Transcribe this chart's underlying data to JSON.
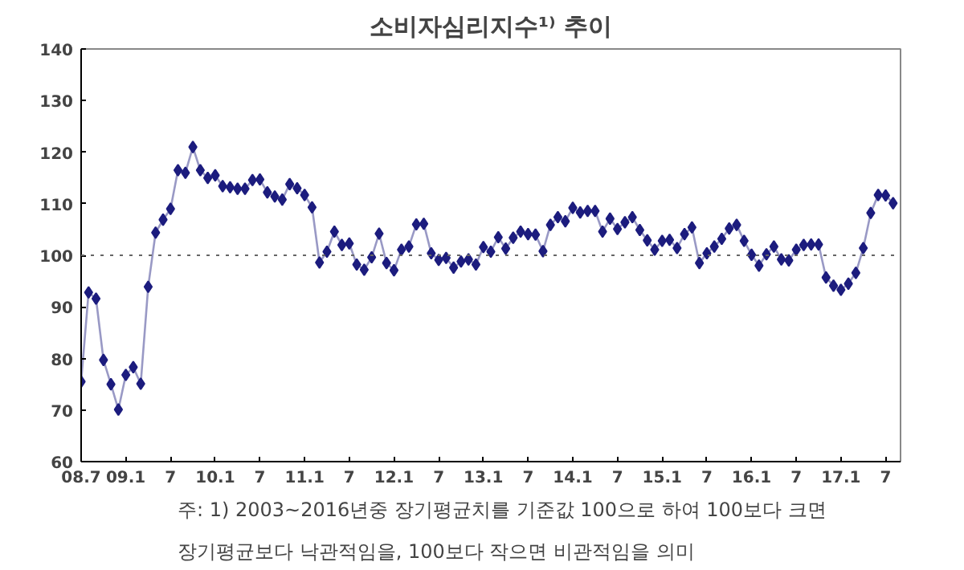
{
  "chart_data": {
    "type": "line",
    "title": "소비자심리지수¹⁾ 추이",
    "x": [
      "2008-07",
      "2008-08",
      "2008-09",
      "2008-10",
      "2008-11",
      "2008-12",
      "2009-01",
      "2009-02",
      "2009-03",
      "2009-04",
      "2009-05",
      "2009-06",
      "2009-07",
      "2009-08",
      "2009-09",
      "2009-10",
      "2009-11",
      "2009-12",
      "2010-01",
      "2010-02",
      "2010-03",
      "2010-04",
      "2010-05",
      "2010-06",
      "2010-07",
      "2010-08",
      "2010-09",
      "2010-10",
      "2010-11",
      "2010-12",
      "2011-01",
      "2011-02",
      "2011-03",
      "2011-04",
      "2011-05",
      "2011-06",
      "2011-07",
      "2011-08",
      "2011-09",
      "2011-10",
      "2011-11",
      "2011-12",
      "2012-01",
      "2012-02",
      "2012-03",
      "2012-04",
      "2012-05",
      "2012-06",
      "2012-07",
      "2012-08",
      "2012-09",
      "2012-10",
      "2012-11",
      "2012-12",
      "2013-01",
      "2013-02",
      "2013-03",
      "2013-04",
      "2013-05",
      "2013-06",
      "2013-07",
      "2013-08",
      "2013-09",
      "2013-10",
      "2013-11",
      "2013-12",
      "2014-01",
      "2014-02",
      "2014-03",
      "2014-04",
      "2014-05",
      "2014-06",
      "2014-07",
      "2014-08",
      "2014-09",
      "2014-10",
      "2014-11",
      "2014-12",
      "2015-01",
      "2015-02",
      "2015-03",
      "2015-04",
      "2015-05",
      "2015-06",
      "2015-07",
      "2015-08",
      "2015-09",
      "2015-10",
      "2015-11",
      "2015-12",
      "2016-01",
      "2016-02",
      "2016-03",
      "2016-04",
      "2016-05",
      "2016-06",
      "2016-07",
      "2016-08",
      "2016-09",
      "2016-10",
      "2016-11",
      "2016-12",
      "2017-01",
      "2017-02",
      "2017-03",
      "2017-04",
      "2017-05",
      "2017-06",
      "2017-07",
      "2017-08"
    ],
    "series": [
      {
        "color": "#1c1c7e",
        "values": [
          75.5,
          92.8,
          91.6,
          79.7,
          75,
          70.1,
          76.8,
          78.3,
          75.1,
          93.9,
          104.4,
          106.9,
          109,
          116.5,
          116,
          121,
          116.5,
          115,
          115.5,
          113.4,
          113.2,
          112.9,
          112.9,
          114.6,
          114.7,
          112.2,
          111.4,
          110.8,
          113.8,
          113,
          111.7,
          109.3,
          98.6,
          100.7,
          104.6,
          102,
          102.3,
          98.2,
          97.2,
          99.6,
          104.2,
          98.5,
          97.1,
          101.1,
          101.7,
          106,
          106.1,
          100.4,
          99.1,
          99.5,
          97.6,
          98.8,
          99.2,
          98.2,
          101.6,
          100.7,
          103.5,
          101.3,
          103.4,
          104.6,
          104.1,
          104,
          100.8,
          105.9,
          107.4,
          106.6,
          109.2,
          108.3,
          108.6,
          108.6,
          104.6,
          107.1,
          105.1,
          106.4,
          107.4,
          104.9,
          102.9,
          101.1,
          102.8,
          103,
          101.4,
          104.1,
          105.4,
          98.5,
          100.4,
          101.7,
          103.2,
          105.2,
          105.9,
          102.8,
          100.1,
          98,
          100.2,
          101.7,
          99.2,
          99,
          101.1,
          102,
          102.1,
          102.1,
          95.7,
          94.1,
          93.3,
          94.5,
          96.6,
          101.4,
          108.2,
          111.7,
          111.6,
          110.1
        ]
      }
    ],
    "xlim": [
      "2008-07",
      "2017-09"
    ],
    "xticks": [
      {
        "value": "2008-07",
        "label": "08.7"
      },
      {
        "value": "2009-01",
        "label": "09.1"
      },
      {
        "value": "2009-07",
        "label": "7"
      },
      {
        "value": "2010-01",
        "label": "10.1"
      },
      {
        "value": "2010-07",
        "label": "7"
      },
      {
        "value": "2011-01",
        "label": "11.1"
      },
      {
        "value": "2011-07",
        "label": "7"
      },
      {
        "value": "2012-01",
        "label": "12.1"
      },
      {
        "value": "2012-07",
        "label": "7"
      },
      {
        "value": "2013-01",
        "label": "13.1"
      },
      {
        "value": "2013-07",
        "label": "7"
      },
      {
        "value": "2014-01",
        "label": "14.1"
      },
      {
        "value": "2014-07",
        "label": "7"
      },
      {
        "value": "2015-01",
        "label": "15.1"
      },
      {
        "value": "2015-07",
        "label": "7"
      },
      {
        "value": "2016-01",
        "label": "16.1"
      },
      {
        "value": "2016-07",
        "label": "7"
      },
      {
        "value": "2017-01",
        "label": "17.1"
      },
      {
        "value": "2017-07",
        "label": "7"
      }
    ],
    "ylim": [
      60,
      140
    ],
    "yticks": [
      60,
      70,
      80,
      90,
      100,
      110,
      120,
      130,
      140
    ],
    "ref_lines": [
      {
        "axis": "y",
        "value": 100,
        "color": "#666666",
        "line_style": "dotted"
      }
    ],
    "marker": "diamond",
    "line_style": "solid",
    "grid": false,
    "annotations": [
      "주: 1) 2003~2016년중 장기평균치를 기준값 100으로 하여 100보다 크면 장기평균보다 낙관적임을, 100보다 작으면 비관적임을 의미"
    ]
  }
}
